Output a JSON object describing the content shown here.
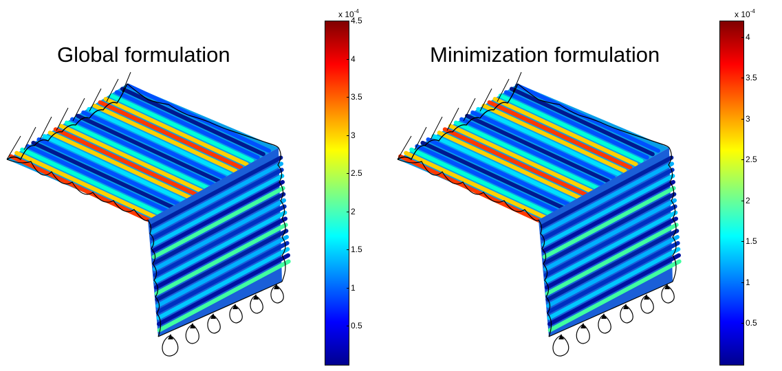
{
  "panels": [
    {
      "title": "Global formulation",
      "colorbar": {
        "multiplier": "x 10",
        "exponent": "-4",
        "max": 4.5,
        "ticks": [
          {
            "value": 0.5,
            "label": "0.5"
          },
          {
            "value": 1,
            "label": "1"
          },
          {
            "value": 1.5,
            "label": "1.5"
          },
          {
            "value": 2,
            "label": "2"
          },
          {
            "value": 2.5,
            "label": "2.5"
          },
          {
            "value": 3,
            "label": "3"
          },
          {
            "value": 3.5,
            "label": "3.5"
          },
          {
            "value": 4,
            "label": "4"
          },
          {
            "value": 4.5,
            "label": "4.5"
          }
        ]
      }
    },
    {
      "title": "Minimization formulation",
      "colorbar": {
        "multiplier": "x 10",
        "exponent": "-4",
        "max": 4.2,
        "ticks": [
          {
            "value": 0.5,
            "label": "0.5"
          },
          {
            "value": 1,
            "label": "1"
          },
          {
            "value": 1.5,
            "label": "1.5"
          },
          {
            "value": 2,
            "label": "2"
          },
          {
            "value": 2.5,
            "label": "2.5"
          },
          {
            "value": 3,
            "label": "3"
          },
          {
            "value": 3.5,
            "label": "3.5"
          },
          {
            "value": 4,
            "label": "4"
          }
        ]
      }
    }
  ],
  "colormap": "jet"
}
